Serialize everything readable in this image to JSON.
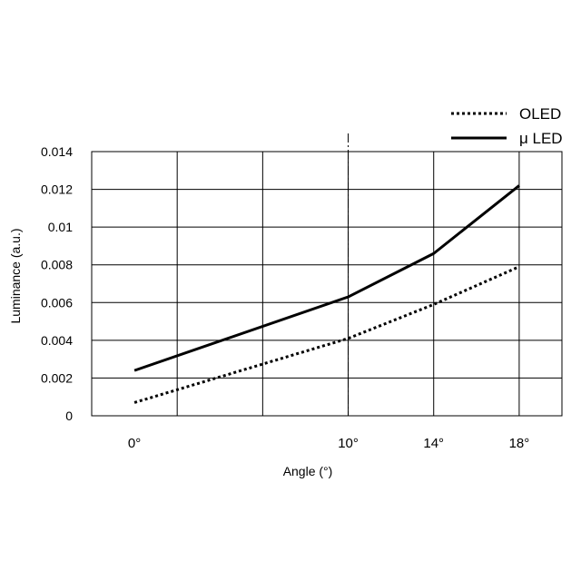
{
  "chart_data": {
    "type": "line",
    "categories": [
      "0°",
      "10°",
      "14°",
      "18°"
    ],
    "x": [
      0,
      10,
      14,
      18
    ],
    "xlabel": "Angle (°)",
    "ylabel": "Luminance (a.u.)",
    "ylim": [
      0,
      0.014
    ],
    "yticks": [
      "0",
      "0.002",
      "0.004",
      "0.006",
      "0.008",
      "0.01",
      "0.012",
      "0.014"
    ],
    "grid": true,
    "legend": "top-right",
    "reference_line_x": 10,
    "series": [
      {
        "name": "OLED",
        "style": "dotted",
        "color": "#000000",
        "x": [
          0,
          10,
          14,
          18
        ],
        "values": [
          0.0007,
          0.0041,
          0.0059,
          0.0079
        ]
      },
      {
        "name": "μ LED",
        "style": "solid",
        "color": "#000000",
        "x": [
          0,
          10,
          14,
          18
        ],
        "values": [
          0.0024,
          0.0063,
          0.0086,
          0.0122
        ]
      }
    ]
  }
}
